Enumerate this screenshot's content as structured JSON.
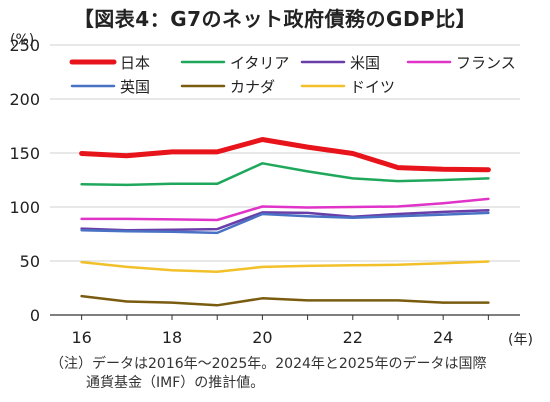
{
  "chart_data": {
    "type": "line",
    "title": "【図表4：G7のネット政府債務のGDP比】",
    "y_unit": "(%)",
    "x_unit": "(年)",
    "ylim": [
      0,
      250
    ],
    "y_ticks": [
      0,
      50,
      100,
      150,
      200,
      250
    ],
    "xlim": [
      15.3,
      25.7
    ],
    "x_ticks": [
      16,
      18,
      20,
      22,
      24
    ],
    "grid": "horizontal",
    "legend_position": "top",
    "x": [
      16,
      17,
      18,
      19,
      20,
      21,
      22,
      23,
      24,
      25
    ],
    "series": [
      {
        "name": "日本",
        "color": "#e8141b",
        "width": 5,
        "values": [
          149.5,
          147.5,
          151,
          151,
          162.5,
          155.5,
          149.5,
          136.5,
          135,
          134.5
        ]
      },
      {
        "name": "イタリア",
        "color": "#1fa85c",
        "width": 2.5,
        "values": [
          121,
          120.5,
          121.5,
          121.5,
          140.5,
          133,
          126.5,
          124,
          125,
          126.5
        ]
      },
      {
        "name": "米国",
        "color": "#6a3ea8",
        "width": 2.5,
        "values": [
          80,
          78.5,
          79,
          79.5,
          95,
          94.5,
          91,
          93.5,
          95.5,
          97
        ]
      },
      {
        "name": "フランス",
        "color": "#e033c8",
        "width": 2.5,
        "values": [
          89,
          89,
          88.5,
          88,
          100.5,
          99.5,
          100,
          100.5,
          103.5,
          107.5
        ]
      },
      {
        "name": "英国",
        "color": "#4a72c4",
        "width": 2.5,
        "values": [
          78.5,
          77.5,
          77,
          76,
          93.5,
          91.5,
          90,
          91.5,
          93,
          94.5
        ]
      },
      {
        "name": "カナダ",
        "color": "#7a5c10",
        "width": 2.5,
        "values": [
          17.5,
          12.5,
          11.5,
          9,
          15.5,
          13.5,
          13.5,
          13.5,
          11.5,
          11.5
        ]
      },
      {
        "name": "ドイツ",
        "color": "#f2c029",
        "width": 2.5,
        "values": [
          49,
          44.5,
          41.5,
          40,
          44.5,
          45.5,
          46,
          46.5,
          48,
          49.5
        ]
      }
    ]
  },
  "note": {
    "line1": "（注）データは2016年～2025年。2024年と2025年のデータは国際",
    "line2": "通貨基金（IMF）の推計値。"
  }
}
